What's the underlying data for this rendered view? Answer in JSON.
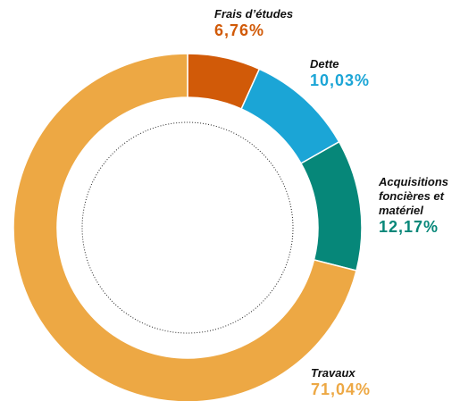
{
  "chart_data": {
    "type": "pie",
    "categories": [
      "Frais d’études",
      "Dette",
      "Acquisitions foncières et matériel",
      "Travaux"
    ],
    "values": [
      6.76,
      10.03,
      12.17,
      71.04
    ],
    "value_labels": [
      "6,76%",
      "10,03%",
      "12,17%",
      "71,04%"
    ],
    "colors": [
      "#d15a08",
      "#1ba5d6",
      "#068779",
      "#eda844"
    ],
    "donut": true
  }
}
